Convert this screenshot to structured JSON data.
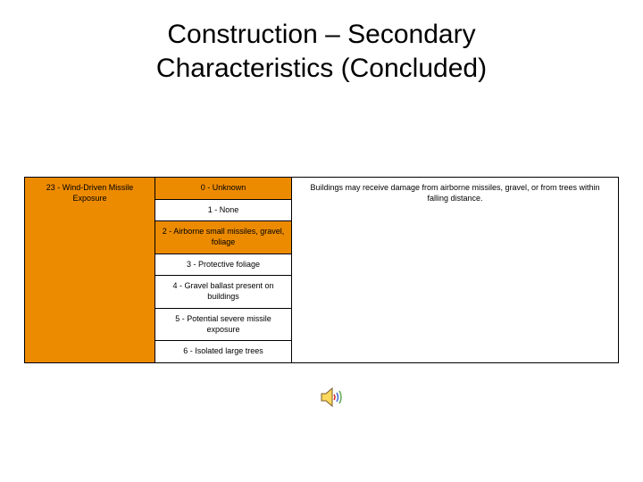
{
  "title_line1": "Construction – Secondary",
  "title_line2": "Characteristics (Concluded)",
  "left_label": "23 - Wind-Driven Missile Exposure",
  "right_desc": "Buildings may receive damage from airborne missiles, gravel, or from trees within falling distance.",
  "rows": [
    {
      "label": "0 - Unknown",
      "color": "orange"
    },
    {
      "label": "1 - None",
      "color": "white"
    },
    {
      "label": "2 - Airborne small missiles, gravel, foliage",
      "color": "orange"
    },
    {
      "label": "3 - Protective foliage",
      "color": "white"
    },
    {
      "label": "4 - Gravel ballast present on buildings",
      "color": "white"
    },
    {
      "label": "5 - Potential severe missile exposure",
      "color": "white"
    },
    {
      "label": "6 - Isolated large trees",
      "color": "white"
    }
  ],
  "colors": {
    "orange": "#ed8b00",
    "white": "#ffffff",
    "black": "#000000"
  },
  "speaker_icon": {
    "body_fill": "#ffd85e",
    "body_stroke": "#7a5b2a",
    "wave_colors": [
      "#d62828",
      "#4066d6",
      "#5aa84f"
    ]
  }
}
